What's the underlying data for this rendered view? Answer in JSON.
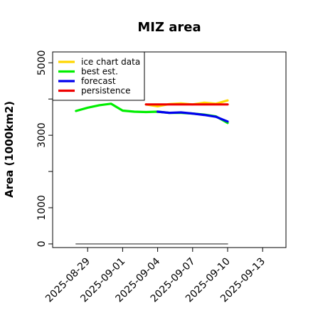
{
  "chart_data": {
    "type": "line",
    "title": "MIZ area",
    "ylabel": "Area (1000km2)",
    "xlabel": "",
    "xlim": [
      "2025-08-26",
      "2025-09-15"
    ],
    "ylim": [
      -100,
      5300
    ],
    "yticks": [
      0,
      1000,
      3000,
      5000
    ],
    "yticks_unlabeled": [
      2000,
      4000
    ],
    "xticks": [
      {
        "label": "2025-08-29",
        "date": "2025-08-29",
        "color": "#000000"
      },
      {
        "label": "2025-09-01",
        "date": "2025-09-01",
        "color": "#000000"
      },
      {
        "label": "2025-09-04",
        "date": "2025-09-04",
        "color": "#228B22"
      },
      {
        "label": "2025-09-07",
        "date": "2025-09-07",
        "color": "#000000"
      },
      {
        "label": "2025-09-10",
        "date": "2025-09-10",
        "color": "#000000"
      },
      {
        "label": "2025-09-13",
        "date": "2025-09-13",
        "color": "#000000"
      }
    ],
    "series": [
      {
        "name": "ice chart data",
        "color": "#FFD700",
        "points": [
          [
            "2025-09-03",
            3850
          ],
          [
            "2025-09-04",
            3800
          ],
          [
            "2025-09-05",
            3860
          ],
          [
            "2025-09-06",
            3880
          ],
          [
            "2025-09-07",
            3850
          ],
          [
            "2025-09-08",
            3900
          ],
          [
            "2025-09-09",
            3870
          ],
          [
            "2025-09-10",
            3960
          ]
        ]
      },
      {
        "name": "best est.",
        "color": "#00EE00",
        "points": [
          [
            "2025-08-28",
            3670
          ],
          [
            "2025-08-29",
            3760
          ],
          [
            "2025-08-30",
            3830
          ],
          [
            "2025-08-31",
            3870
          ],
          [
            "2025-09-01",
            3680
          ],
          [
            "2025-09-02",
            3650
          ],
          [
            "2025-09-03",
            3640
          ],
          [
            "2025-09-04",
            3650
          ],
          [
            "2025-09-05",
            3620
          ],
          [
            "2025-09-06",
            3620
          ],
          [
            "2025-09-07",
            3600
          ],
          [
            "2025-09-08",
            3570
          ],
          [
            "2025-09-09",
            3520
          ],
          [
            "2025-09-10",
            3340
          ]
        ]
      },
      {
        "name": "forecast",
        "color": "#0000EE",
        "points": [
          [
            "2025-09-04",
            3650
          ],
          [
            "2025-09-05",
            3620
          ],
          [
            "2025-09-06",
            3630
          ],
          [
            "2025-09-07",
            3600
          ],
          [
            "2025-09-08",
            3560
          ],
          [
            "2025-09-09",
            3510
          ],
          [
            "2025-09-10",
            3380
          ]
        ]
      },
      {
        "name": "persistence",
        "color": "#EE0000",
        "points": [
          [
            "2025-09-03",
            3850
          ],
          [
            "2025-09-10",
            3850
          ]
        ]
      },
      {
        "name": "",
        "color": "#666666",
        "points": [
          [
            "2025-08-28",
            0
          ],
          [
            "2025-09-10",
            0
          ]
        ]
      }
    ],
    "legend": {
      "placement": "top-left",
      "entries": [
        {
          "label": "ice chart data",
          "color": "#FFD700"
        },
        {
          "label": "best est.",
          "color": "#00EE00"
        },
        {
          "label": "forecast",
          "color": "#0000EE"
        },
        {
          "label": "persistence",
          "color": "#EE0000"
        }
      ]
    },
    "grid": false
  }
}
